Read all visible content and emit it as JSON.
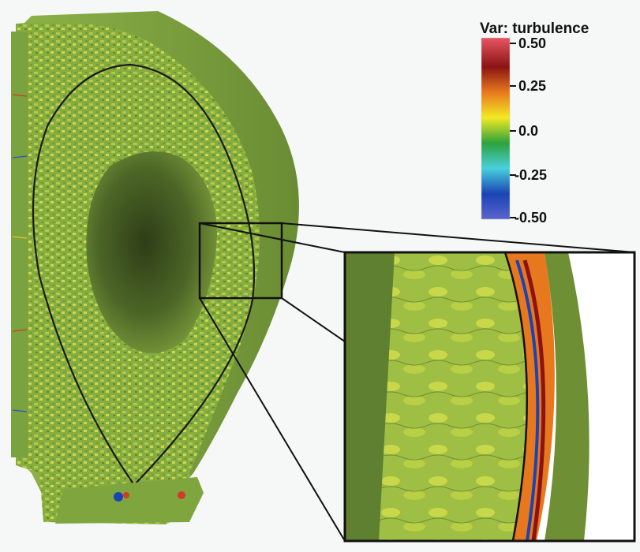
{
  "colorbar": {
    "title": "Var: turbulence",
    "ticks": [
      "0.50",
      "0.25",
      "0.0",
      "-0.25",
      "-0.50"
    ],
    "range": [
      -0.5,
      0.5
    ],
    "colors": [
      "#e85560",
      "#8a1414",
      "#e8781e",
      "#f2ea22",
      "#2ea23c",
      "#48d0dc",
      "#1a44b4",
      "#5a64cc"
    ]
  },
  "palette": {
    "surface": "#7ea642",
    "surface_dark": "#5d7e2a",
    "surface_light": "#a9c24a",
    "shadow": "#3a4c1c",
    "separatrix": "#1a1a1a"
  }
}
